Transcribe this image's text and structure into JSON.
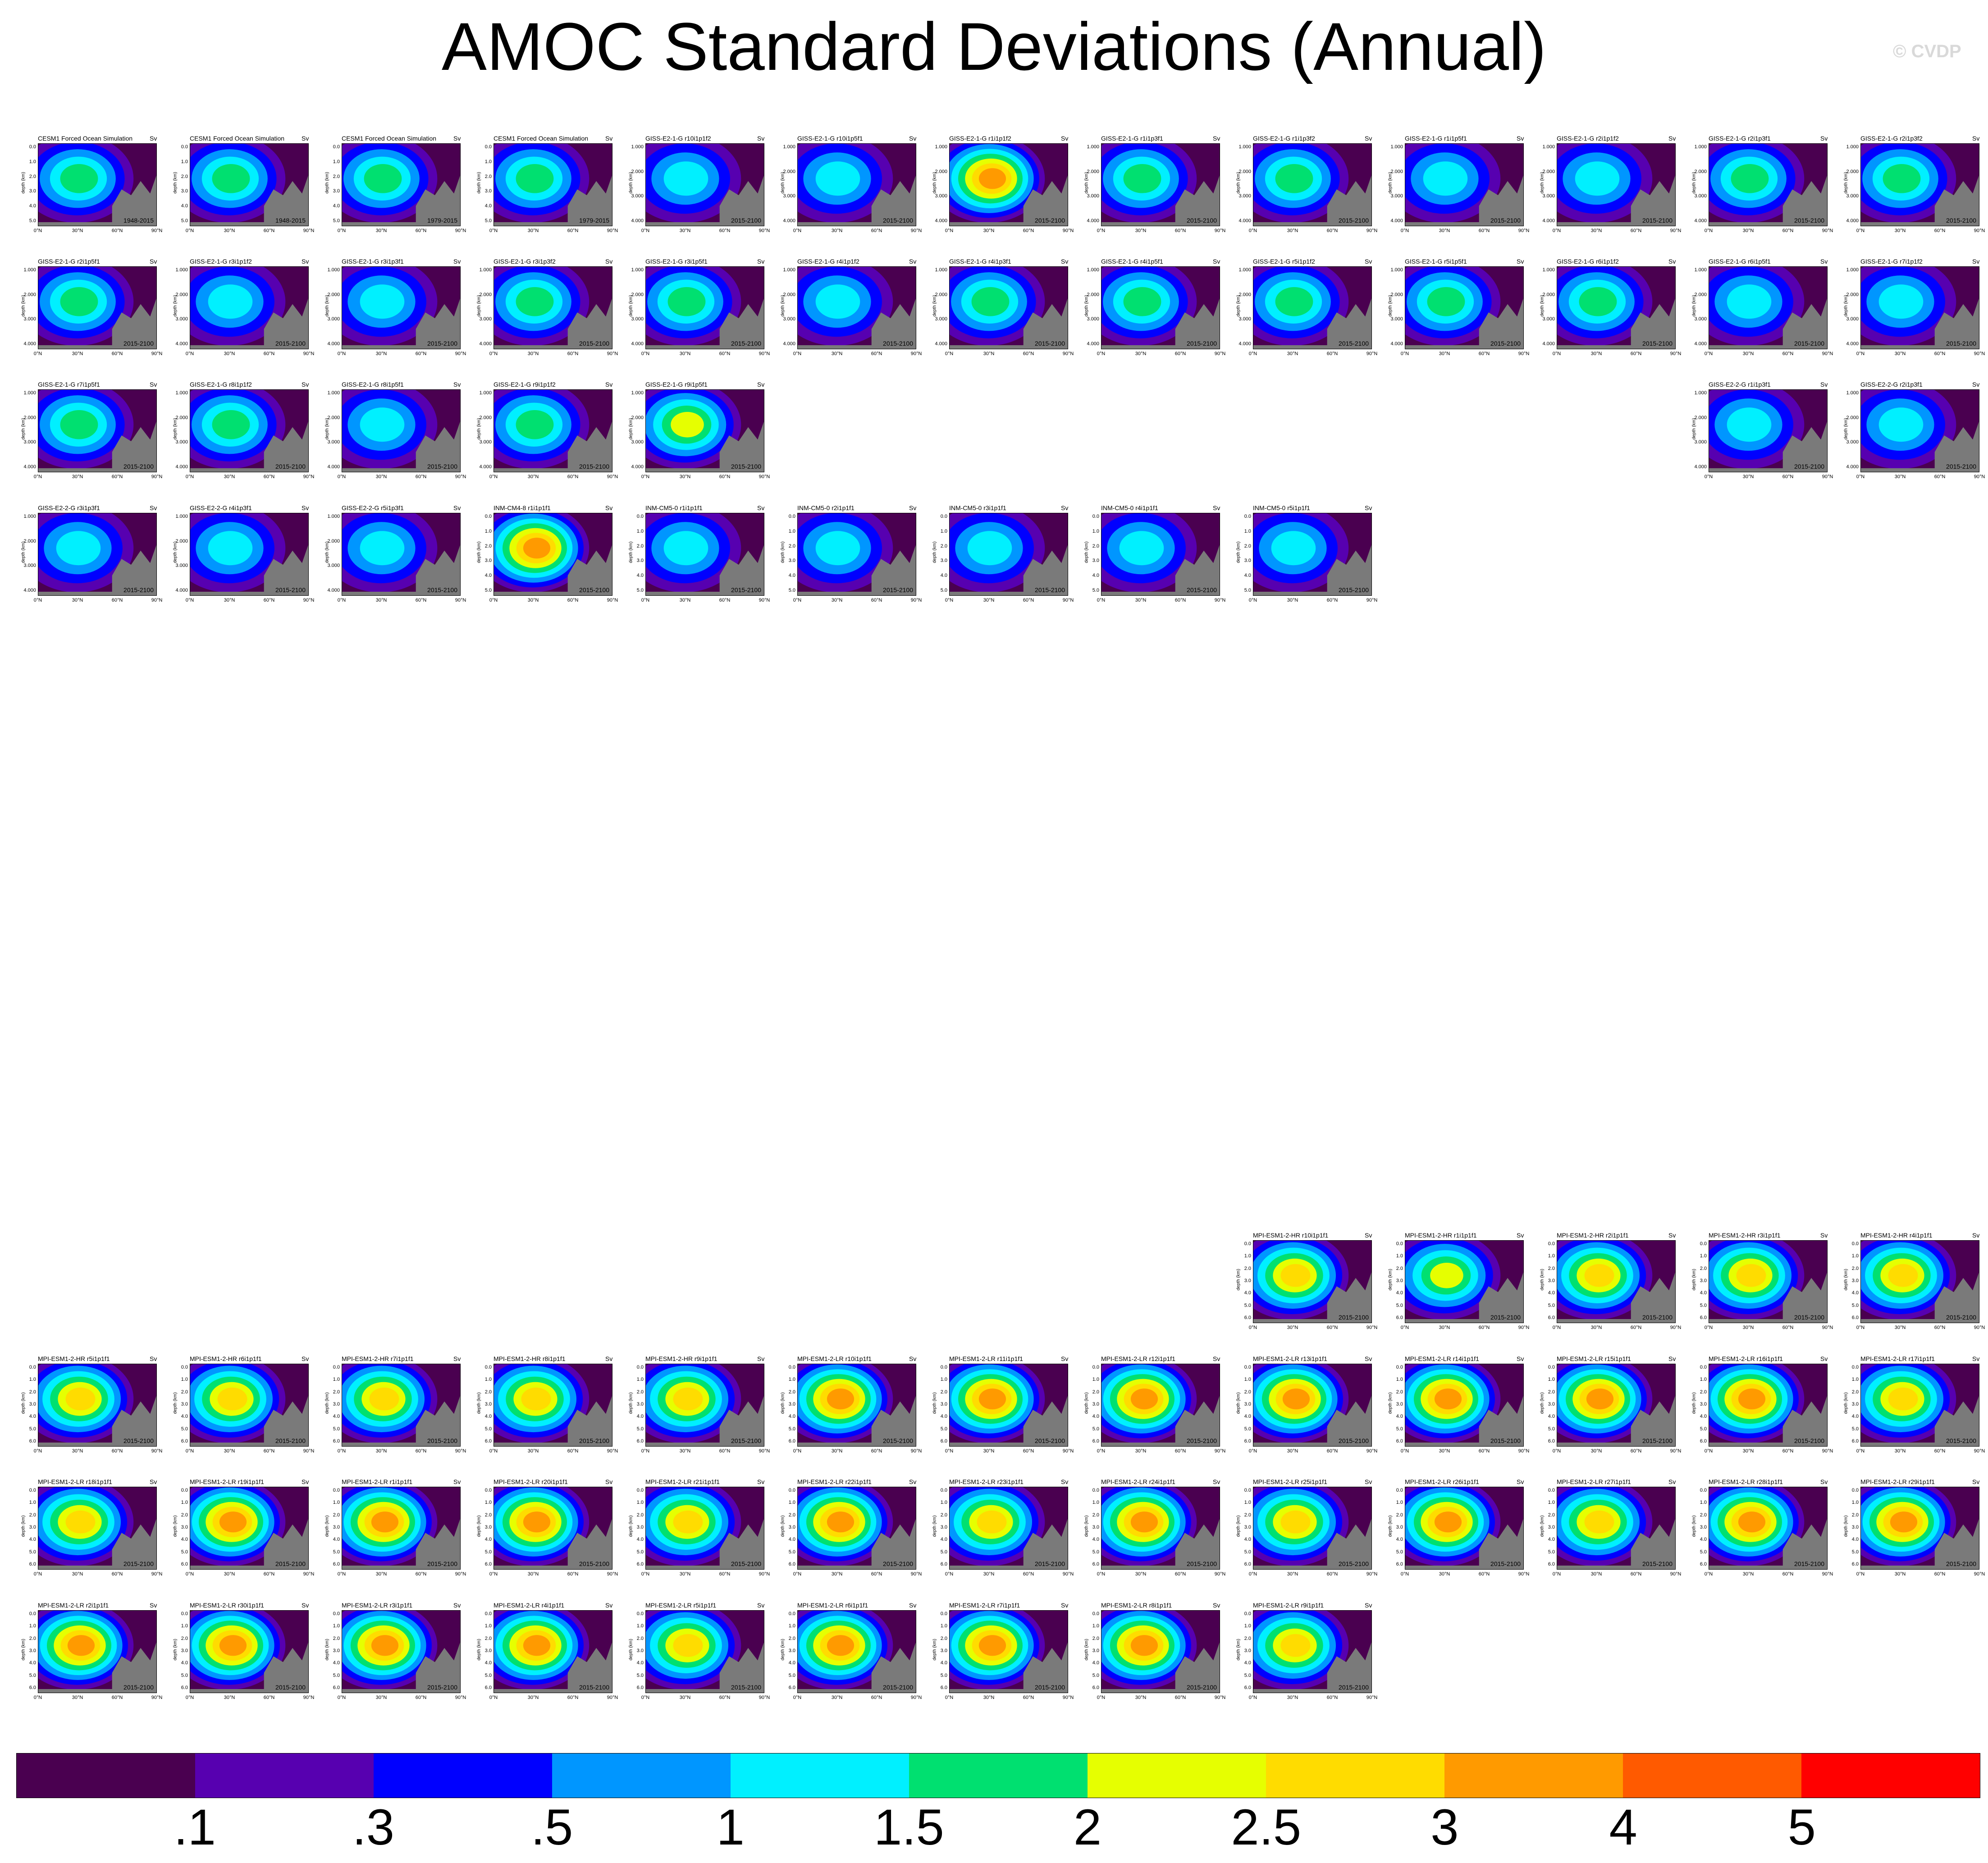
{
  "title": "AMOC Standard Deviations (Annual)",
  "watermark": "© CVDP",
  "chart_data": {
    "type": "heatmap",
    "title": "AMOC Standard Deviations (Annual)",
    "units": "Sv",
    "xlabel": "",
    "ylabel": "depth (km)",
    "x_ticks": [
      "0°N",
      "30°N",
      "60°N",
      "90°N"
    ],
    "colorbar": {
      "colors": [
        "#4a0050",
        "#5700b0",
        "#0000ff",
        "#0096ff",
        "#00f0ff",
        "#00e070",
        "#e6ff00",
        "#ffdc00",
        "#ff9a00",
        "#ff5a00",
        "#ff0000"
      ],
      "tick_labels": [
        ".1",
        ".3",
        ".5",
        "1",
        "1.5",
        "2",
        "2.5",
        "3",
        "4",
        "5"
      ]
    },
    "panels": [
      {
        "title": "CESM1 Forced Ocean Simulation",
        "period": "1948-2015",
        "peak": 1.6,
        "yscale": "a"
      },
      {
        "title": "CESM1 Forced Ocean Simulation",
        "period": "1948-2015",
        "peak": 1.6,
        "yscale": "a"
      },
      {
        "title": "CESM1 Forced Ocean Simulation",
        "period": "1979-2015",
        "peak": 1.7,
        "yscale": "a"
      },
      {
        "title": "CESM1 Forced Ocean Simulation",
        "period": "1979-2015",
        "peak": 1.6,
        "yscale": "a"
      },
      {
        "title": "GISS-E2-1-G r10i1p1f2",
        "period": "2015-2100",
        "peak": 1.2,
        "yscale": "b"
      },
      {
        "title": "GISS-E2-1-G r10i1p5f1",
        "period": "2015-2100",
        "peak": 1.3,
        "yscale": "b"
      },
      {
        "title": "GISS-E2-1-G r1i1p1f2",
        "period": "2015-2100",
        "peak": 3.0,
        "yscale": "b"
      },
      {
        "title": "GISS-E2-1-G r1i1p3f1",
        "period": "2015-2100",
        "peak": 1.9,
        "yscale": "b"
      },
      {
        "title": "GISS-E2-1-G r1i1p3f2",
        "period": "2015-2100",
        "peak": 1.9,
        "yscale": "b"
      },
      {
        "title": "GISS-E2-1-G r1i1p5f1",
        "period": "2015-2100",
        "peak": 1.4,
        "yscale": "b"
      },
      {
        "title": "GISS-E2-1-G r2i1p1f2",
        "period": "2015-2100",
        "peak": 1.4,
        "yscale": "b"
      },
      {
        "title": "GISS-E2-1-G r2i1p3f1",
        "period": "2015-2100",
        "peak": 1.7,
        "yscale": "b"
      },
      {
        "title": "GISS-E2-1-G r2i1p3f2",
        "period": "2015-2100",
        "peak": 1.6,
        "yscale": "b"
      },
      {
        "title": "GISS-E2-1-G r2i1p5f1",
        "period": "2015-2100",
        "peak": 1.8,
        "yscale": "b"
      },
      {
        "title": "GISS-E2-1-G r3i1p1f2",
        "period": "2015-2100",
        "peak": 1.3,
        "yscale": "b"
      },
      {
        "title": "GISS-E2-1-G r3i1p3f1",
        "period": "2015-2100",
        "peak": 1.3,
        "yscale": "b"
      },
      {
        "title": "GISS-E2-1-G r3i1p3f2",
        "period": "2015-2100",
        "peak": 1.6,
        "yscale": "b"
      },
      {
        "title": "GISS-E2-1-G r3i1p5f1",
        "period": "2015-2100",
        "peak": 1.9,
        "yscale": "b"
      },
      {
        "title": "GISS-E2-1-G r4i1p1f2",
        "period": "2015-2100",
        "peak": 1.3,
        "yscale": "b"
      },
      {
        "title": "GISS-E2-1-G r4i1p3f1",
        "period": "2015-2100",
        "peak": 1.8,
        "yscale": "b"
      },
      {
        "title": "GISS-E2-1-G r4i1p5f1",
        "period": "2015-2100",
        "peak": 1.5,
        "yscale": "b"
      },
      {
        "title": "GISS-E2-1-G r5i1p1f2",
        "period": "2015-2100",
        "peak": 1.6,
        "yscale": "b"
      },
      {
        "title": "GISS-E2-1-G r5i1p5f1",
        "period": "2015-2100",
        "peak": 1.8,
        "yscale": "b"
      },
      {
        "title": "GISS-E2-1-G r6i1p1f2",
        "period": "2015-2100",
        "peak": 1.6,
        "yscale": "b"
      },
      {
        "title": "GISS-E2-1-G r6i1p5f1",
        "period": "2015-2100",
        "peak": 1.3,
        "yscale": "b"
      },
      {
        "title": "GISS-E2-1-G r7i1p1f2",
        "period": "2015-2100",
        "peak": 1.4,
        "yscale": "b"
      },
      {
        "title": "GISS-E2-1-G r7i1p5f1",
        "period": "2015-2100",
        "peak": 1.8,
        "yscale": "b"
      },
      {
        "title": "GISS-E2-1-G r8i1p1f2",
        "period": "2015-2100",
        "peak": 1.6,
        "yscale": "b"
      },
      {
        "title": "GISS-E2-1-G r8i1p5f1",
        "period": "2015-2100",
        "peak": 1.3,
        "yscale": "b"
      },
      {
        "title": "GISS-E2-1-G r9i1p1f2",
        "period": "2015-2100",
        "peak": 1.7,
        "yscale": "b"
      },
      {
        "title": "GISS-E2-1-G r9i1p5f1",
        "period": "2015-2100",
        "peak": 2.1,
        "yscale": "b"
      },
      {
        "title": "GISS-E2-2-G r1i1p3f1",
        "period": "2015-2100",
        "peak": 1.4,
        "yscale": "b"
      },
      {
        "title": "GISS-E2-2-G r2i1p3f1",
        "period": "2015-2100",
        "peak": 1.4,
        "yscale": "b"
      },
      {
        "title": "GISS-E2-2-G r3i1p3f1",
        "period": "2015-2100",
        "peak": 1.3,
        "yscale": "b"
      },
      {
        "title": "GISS-E2-2-G r4i1p3f1",
        "period": "2015-2100",
        "peak": 1.3,
        "yscale": "b"
      },
      {
        "title": "GISS-E2-2-G r5i1p3f1",
        "period": "2015-2100",
        "peak": 1.4,
        "yscale": "b"
      },
      {
        "title": "INM-CM4-8 r1i1p1f1",
        "period": "2015-2100",
        "peak": 3.5,
        "yscale": "c"
      },
      {
        "title": "INM-CM5-0 r1i1p1f1",
        "period": "2015-2100",
        "peak": 1.2,
        "yscale": "c"
      },
      {
        "title": "INM-CM5-0 r2i1p1f1",
        "period": "2015-2100",
        "peak": 1.2,
        "yscale": "c"
      },
      {
        "title": "INM-CM5-0 r3i1p1f1",
        "period": "2015-2100",
        "peak": 1.2,
        "yscale": "c"
      },
      {
        "title": "INM-CM5-0 r4i1p1f1",
        "period": "2015-2100",
        "peak": 1.2,
        "yscale": "c"
      },
      {
        "title": "INM-CM5-0 r5i1p1f1",
        "period": "2015-2100",
        "peak": 1.2,
        "yscale": "c"
      },
      {
        "title": "MPI-ESM1-2-HR r10i1p1f1",
        "period": "2015-2100",
        "peak": 2.5,
        "yscale": "d"
      },
      {
        "title": "MPI-ESM1-2-HR r1i1p1f1",
        "period": "2015-2100",
        "peak": 2.1,
        "yscale": "d"
      },
      {
        "title": "MPI-ESM1-2-HR r2i1p1f1",
        "period": "2015-2100",
        "peak": 2.6,
        "yscale": "d"
      },
      {
        "title": "MPI-ESM1-2-HR r3i1p1f1",
        "period": "2015-2100",
        "peak": 2.5,
        "yscale": "d"
      },
      {
        "title": "MPI-ESM1-2-HR r4i1p1f1",
        "period": "2015-2100",
        "peak": 2.6,
        "yscale": "d"
      },
      {
        "title": "MPI-ESM1-2-HR r5i1p1f1",
        "period": "2015-2100",
        "peak": 2.6,
        "yscale": "d"
      },
      {
        "title": "MPI-ESM1-2-HR r6i1p1f1",
        "period": "2015-2100",
        "peak": 2.5,
        "yscale": "d"
      },
      {
        "title": "MPI-ESM1-2-HR r7i1p1f1",
        "period": "2015-2100",
        "peak": 2.6,
        "yscale": "d"
      },
      {
        "title": "MPI-ESM1-2-HR r8i1p1f1",
        "period": "2015-2100",
        "peak": 2.6,
        "yscale": "d"
      },
      {
        "title": "MPI-ESM1-2-HR r9i1p1f1",
        "period": "2015-2100",
        "peak": 2.5,
        "yscale": "d"
      },
      {
        "title": "MPI-ESM1-2-LR r10i1p1f1",
        "period": "2015-2100",
        "peak": 3.5,
        "yscale": "d"
      },
      {
        "title": "MPI-ESM1-2-LR r11i1p1f1",
        "period": "2015-2100",
        "peak": 3.2,
        "yscale": "d"
      },
      {
        "title": "MPI-ESM1-2-LR r12i1p1f1",
        "period": "2015-2100",
        "peak": 3.1,
        "yscale": "d"
      },
      {
        "title": "MPI-ESM1-2-LR r13i1p1f1",
        "period": "2015-2100",
        "peak": 3.3,
        "yscale": "d"
      },
      {
        "title": "MPI-ESM1-2-LR r14i1p1f1",
        "period": "2015-2100",
        "peak": 3.2,
        "yscale": "d"
      },
      {
        "title": "MPI-ESM1-2-LR r15i1p1f1",
        "period": "2015-2100",
        "peak": 3.3,
        "yscale": "d"
      },
      {
        "title": "MPI-ESM1-2-LR r16i1p1f1",
        "period": "2015-2100",
        "peak": 3.2,
        "yscale": "d"
      },
      {
        "title": "MPI-ESM1-2-LR r17i1p1f1",
        "period": "2015-2100",
        "peak": 2.8,
        "yscale": "d"
      },
      {
        "title": "MPI-ESM1-2-LR r18i1p1f1",
        "period": "2015-2100",
        "peak": 2.9,
        "yscale": "d"
      },
      {
        "title": "MPI-ESM1-2-LR r19i1p1f1",
        "period": "2015-2100",
        "peak": 3.0,
        "yscale": "d"
      },
      {
        "title": "MPI-ESM1-2-LR r1i1p1f1",
        "period": "2015-2100",
        "peak": 3.3,
        "yscale": "d"
      },
      {
        "title": "MPI-ESM1-2-LR r20i1p1f1",
        "period": "2015-2100",
        "peak": 3.2,
        "yscale": "d"
      },
      {
        "title": "MPI-ESM1-2-LR r21i1p1f1",
        "period": "2015-2100",
        "peak": 2.8,
        "yscale": "d"
      },
      {
        "title": "MPI-ESM1-2-LR r22i1p1f1",
        "period": "2015-2100",
        "peak": 3.2,
        "yscale": "d"
      },
      {
        "title": "MPI-ESM1-2-LR r23i1p1f1",
        "period": "2015-2100",
        "peak": 2.8,
        "yscale": "d"
      },
      {
        "title": "MPI-ESM1-2-LR r24i1p1f1",
        "period": "2015-2100",
        "peak": 3.4,
        "yscale": "d"
      },
      {
        "title": "MPI-ESM1-2-LR r25i1p1f1",
        "period": "2015-2100",
        "peak": 2.9,
        "yscale": "d"
      },
      {
        "title": "MPI-ESM1-2-LR r26i1p1f1",
        "period": "2015-2100",
        "peak": 3.4,
        "yscale": "d"
      },
      {
        "title": "MPI-ESM1-2-LR r27i1p1f1",
        "period": "2015-2100",
        "peak": 2.9,
        "yscale": "d"
      },
      {
        "title": "MPI-ESM1-2-LR r28i1p1f1",
        "period": "2015-2100",
        "peak": 3.3,
        "yscale": "d"
      },
      {
        "title": "MPI-ESM1-2-LR r29i1p1f1",
        "period": "2015-2100",
        "peak": 3.4,
        "yscale": "d"
      },
      {
        "title": "MPI-ESM1-2-LR r2i1p1f1",
        "period": "2015-2100",
        "peak": 3.0,
        "yscale": "d"
      },
      {
        "title": "MPI-ESM1-2-LR r30i1p1f1",
        "period": "2015-2100",
        "peak": 3.6,
        "yscale": "d"
      },
      {
        "title": "MPI-ESM1-2-LR r3i1p1f1",
        "period": "2015-2100",
        "peak": 3.0,
        "yscale": "d"
      },
      {
        "title": "MPI-ESM1-2-LR r4i1p1f1",
        "period": "2015-2100",
        "peak": 3.5,
        "yscale": "d"
      },
      {
        "title": "MPI-ESM1-2-LR r5i1p1f1",
        "period": "2015-2100",
        "peak": 2.8,
        "yscale": "d"
      },
      {
        "title": "MPI-ESM1-2-LR r6i1p1f1",
        "period": "2015-2100",
        "peak": 3.4,
        "yscale": "d"
      },
      {
        "title": "MPI-ESM1-2-LR r7i1p1f1",
        "period": "2015-2100",
        "peak": 3.2,
        "yscale": "d"
      },
      {
        "title": "MPI-ESM1-2-LR r8i1p1f1",
        "period": "2015-2100",
        "peak": 3.1,
        "yscale": "d"
      },
      {
        "title": "MPI-ESM1-2-LR r9i1p1f1",
        "period": "2015-2100",
        "peak": 2.9,
        "yscale": "d"
      }
    ],
    "y_tick_sets": {
      "a": [
        "0.0",
        "1.0",
        "2.0",
        "3.0",
        "4.0",
        "5.0"
      ],
      "b": [
        "1.000",
        "2.000",
        "3.000",
        "4.000"
      ],
      "c": [
        "0.0",
        "1.0",
        "2.0",
        "3.0",
        "4.0",
        "5.0"
      ],
      "d": [
        "0.0",
        "1.0",
        "2.0",
        "3.0",
        "4.0",
        "5.0",
        "6.0"
      ]
    }
  }
}
